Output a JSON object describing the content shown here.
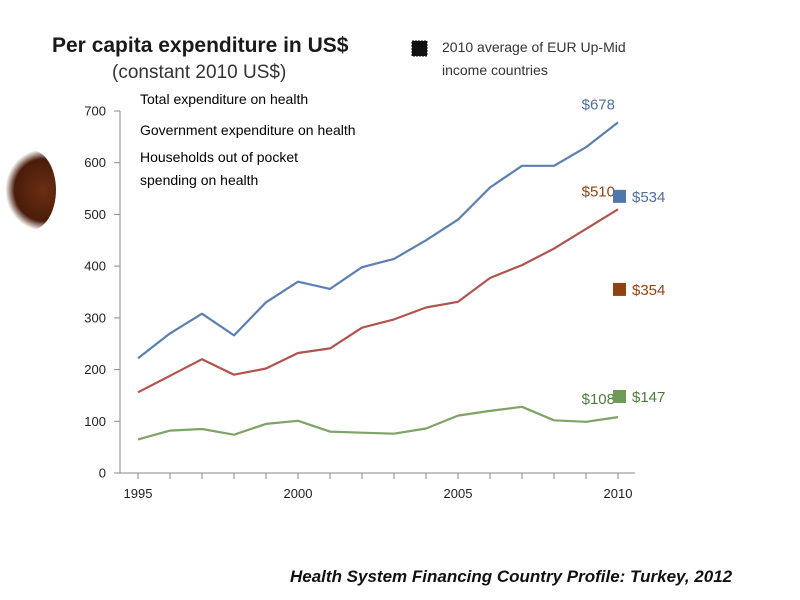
{
  "chart_data": {
    "type": "line",
    "title": "Per capita expenditure in US$",
    "subtitle": "(constant 2010 US$)",
    "xlabel": "",
    "ylabel": "",
    "xlim": [
      1995,
      2010
    ],
    "ylim": [
      0,
      700
    ],
    "x_ticks": [
      1995,
      2000,
      2005,
      2010
    ],
    "y_ticks": [
      0,
      100,
      200,
      300,
      400,
      500,
      600,
      700
    ],
    "x": [
      1995,
      1996,
      1997,
      1998,
      1999,
      2000,
      2001,
      2002,
      2003,
      2004,
      2005,
      2006,
      2007,
      2008,
      2009,
      2010
    ],
    "series": [
      {
        "name": "Total expenditure on health",
        "color": "#5b7fb0",
        "values": [
          222,
          270,
          308,
          266,
          330,
          370,
          356,
          398,
          414,
          450,
          490,
          552,
          594,
          594,
          630,
          678
        ],
        "end_label": "$678",
        "average": 534,
        "average_label": "$534"
      },
      {
        "name": "Government expenditure on health",
        "color": "#b05450",
        "values": [
          156,
          188,
          220,
          190,
          202,
          232,
          241,
          281,
          297,
          320,
          331,
          377,
          402,
          434,
          472,
          510
        ],
        "end_label": "$510",
        "average": 354,
        "average_label": "$354"
      },
      {
        "name": "Households out of pocket spending on health",
        "name_lines": [
          "Households out of pocket",
          "spending on health"
        ],
        "color": "#7ea364",
        "values": [
          65,
          82,
          85,
          74,
          95,
          101,
          80,
          78,
          76,
          86,
          111,
          120,
          128,
          102,
          99,
          108
        ],
        "end_label": "$108",
        "average": 147,
        "average_label": "$147"
      }
    ],
    "average_note_lines": [
      "2010 average of EUR Up-Mid",
      "income countries"
    ],
    "average_marker_colors": [
      "#4f77ad",
      "#8f4312",
      "#6f9a58"
    ],
    "end_label_colors": [
      "#4f6f9a",
      "#8f4312",
      "#4f7a3e"
    ],
    "legend_placement": "top-left",
    "grid": false,
    "source": "Health System Financing Country Profile: Turkey, 2012"
  }
}
